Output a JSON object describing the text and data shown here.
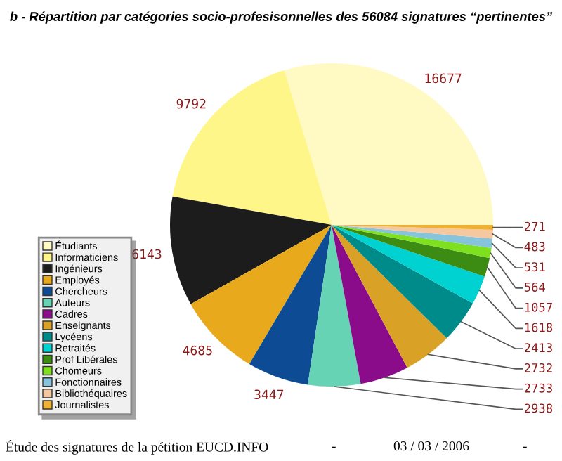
{
  "chart_data": {
    "type": "pie",
    "title": "b - Répartition par catégories socio-profesisonnelles des 56084 signatures “pertinentes”",
    "categories": [
      "Étudiants",
      "Informaticiens",
      "Ingénieurs",
      "Employés",
      "Chercheurs",
      "Auteurs",
      "Cadres",
      "Enseignants",
      "Lycéens",
      "Retraités",
      "Prof Libérales",
      "Chomeurs",
      "Fonctionnaires",
      "Bibliothéquaires",
      "Journalistes"
    ],
    "values": [
      16677,
      9792,
      6143,
      4685,
      3447,
      2938,
      2733,
      2732,
      2413,
      1618,
      1057,
      564,
      531,
      483,
      271
    ],
    "colors": [
      "#fff9c4",
      "#fff68a",
      "#1c1c1c",
      "#e8a91c",
      "#0d4c94",
      "#66d4b4",
      "#8a0c8a",
      "#d9a126",
      "#008b8b",
      "#00d2d2",
      "#3c8c14",
      "#7ee01e",
      "#86c4dc",
      "#f5c8a0",
      "#f0b030"
    ],
    "data_labels": true,
    "legend": "bottom left",
    "annotations": [
      "Étude des signatures de la pétition EUCD.INFO",
      "-",
      "03 / 03 / 2006",
      "-"
    ]
  }
}
